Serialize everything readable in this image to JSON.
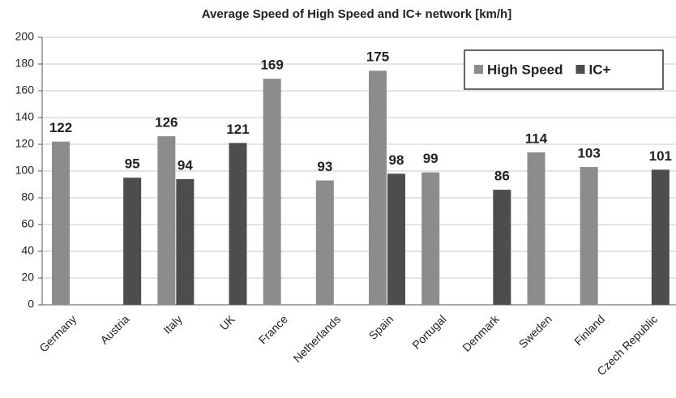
{
  "chart_data": {
    "type": "bar",
    "title": "Average Speed of High Speed and IC+ network [km/h]",
    "categories": [
      "Germany",
      "Austria",
      "Italy",
      "UK",
      "France",
      "Netherlands",
      "Spain",
      "Portugal",
      "Denmark",
      "Sweden",
      "Finland",
      "Czech Republic"
    ],
    "series": [
      {
        "name": "High Speed",
        "color": "#8c8c8c",
        "values": [
          122,
          null,
          126,
          null,
          169,
          93,
          175,
          99,
          null,
          114,
          103,
          null
        ]
      },
      {
        "name": "IC+",
        "color": "#4d4d4d",
        "values": [
          null,
          95,
          94,
          121,
          null,
          null,
          98,
          null,
          86,
          null,
          null,
          101
        ]
      }
    ],
    "ylim": [
      0,
      200
    ],
    "yticks": [
      0,
      20,
      40,
      60,
      80,
      100,
      120,
      140,
      160,
      180,
      200
    ],
    "grid": true,
    "legend": "upper right"
  }
}
